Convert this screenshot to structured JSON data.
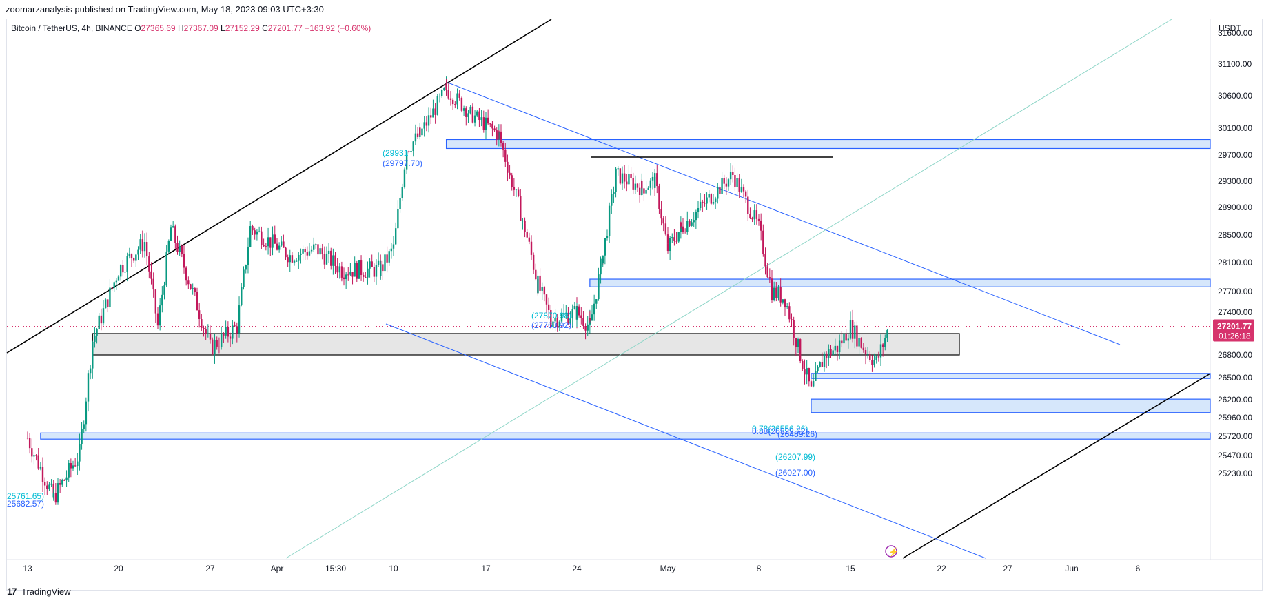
{
  "header": {
    "published": "zoomarzanalysis published on TradingView.com, May 18, 2023 09:03 UTC+3:30"
  },
  "symbol": {
    "name": "Bitcoin / TetherUS, 4h, BINANCE",
    "o_label": "O",
    "o_value": "27365.69",
    "h_label": "H",
    "h_value": "27367.09",
    "l_label": "L",
    "l_value": "27152.29",
    "c_label": "C",
    "c_value": "27201.77",
    "change": "−163.92 (−0.60%)"
  },
  "currency": "USDT",
  "price_axis": {
    "ticks": [
      "31600.00",
      "31100.00",
      "30600.00",
      "30100.00",
      "29700.00",
      "29300.00",
      "28900.00",
      "28500.00",
      "28100.00",
      "27700.00",
      "27400.00",
      "26800.00",
      "26500.00",
      "26200.00",
      "25960.00",
      "25720.00",
      "25470.00",
      "25230.00"
    ],
    "last_price": "27201.77",
    "countdown": "01:26:18"
  },
  "time_axis": {
    "ticks": [
      "13",
      "20",
      "27",
      "Apr",
      "15:30",
      "10",
      "17",
      "24",
      "May",
      "8",
      "15",
      "22",
      "27",
      "Jun",
      "6"
    ]
  },
  "annotations": {
    "zone_top_a": "(29931",
    "zone_top_b": "(29797.70)",
    "zone_mid_a": "(27870.98)",
    "zone_mid_b": "(27763.92)",
    "fib_a": "0.78(26556.26)",
    "fib_b": "0.88(26529.72)",
    "fib_c": "(26489.26)",
    "zone_low_a": "(26207.99)",
    "zone_low_b": "(26027.00)",
    "zone_bottom_a": "25761.65)",
    "zone_bottom_b": "25682.57)"
  },
  "colors": {
    "up": "#089981",
    "down": "#f23645",
    "wick_down": "#c2185b",
    "accent_blue": "#2962ff",
    "zone_fill": "#bbdefb",
    "teal_line": "#8fd6c8",
    "last_price_bg": "#d6336c"
  },
  "footer": {
    "brand": "TradingView",
    "logo_glyph": "17"
  },
  "chart_data": {
    "type": "candlestick",
    "title": "Bitcoin / TetherUS, 4h, BINANCE",
    "ylabel": "USDT",
    "ylim": [
      25100,
      31800
    ],
    "x": [
      "Mar 13",
      "Mar 20",
      "Mar 27",
      "Apr",
      "Apr 10",
      "Apr 17",
      "Apr 24",
      "May",
      "May 8",
      "May 15",
      "May 22",
      "May 27",
      "Jun",
      "Jun 6"
    ],
    "close_path": [
      [
        "Mar 13",
        25700
      ],
      [
        "Mar 15",
        24900
      ],
      [
        "Mar 17",
        25500
      ],
      [
        "Mar 18",
        27000
      ],
      [
        "Mar 20",
        28000
      ],
      [
        "Mar 22",
        28400
      ],
      [
        "Mar 23",
        27200
      ],
      [
        "Mar 24",
        28600
      ],
      [
        "Mar 26",
        27500
      ],
      [
        "Mar 27",
        26900
      ],
      [
        "Mar 29",
        27200
      ],
      [
        "Mar 30",
        28600
      ],
      [
        "Apr 2",
        28200
      ],
      [
        "Apr 4",
        28300
      ],
      [
        "Apr 6",
        28000
      ],
      [
        "Apr 9",
        28000
      ],
      [
        "Apr 10",
        28300
      ],
      [
        "Apr 11",
        29800
      ],
      [
        "Apr 12",
        30000
      ],
      [
        "Apr 14",
        30700
      ],
      [
        "Apr 16",
        30300
      ],
      [
        "Apr 18",
        30000
      ],
      [
        "Apr 19",
        29300
      ],
      [
        "Apr 20",
        28600
      ],
      [
        "Apr 21",
        27800
      ],
      [
        "Apr 22",
        27300
      ],
      [
        "Apr 24",
        27400
      ],
      [
        "Apr 25",
        27200
      ],
      [
        "Apr 26",
        28200
      ],
      [
        "Apr 27",
        29400
      ],
      [
        "Apr 29",
        29200
      ],
      [
        "Apr 30",
        29300
      ],
      [
        "May 1",
        28300
      ],
      [
        "May 2",
        28600
      ],
      [
        "May 4",
        29000
      ],
      [
        "May 6",
        29400
      ],
      [
        "May 7",
        29000
      ],
      [
        "May 8",
        28600
      ],
      [
        "May 9",
        27700
      ],
      [
        "May 10",
        27600
      ],
      [
        "May 11",
        26900
      ],
      [
        "May 12",
        26300
      ],
      [
        "May 13",
        26800
      ],
      [
        "May 14",
        26900
      ],
      [
        "May 15",
        27200
      ],
      [
        "May 16",
        26900
      ],
      [
        "May 17",
        26700
      ],
      [
        "May 18",
        27201.77
      ]
    ]
  }
}
